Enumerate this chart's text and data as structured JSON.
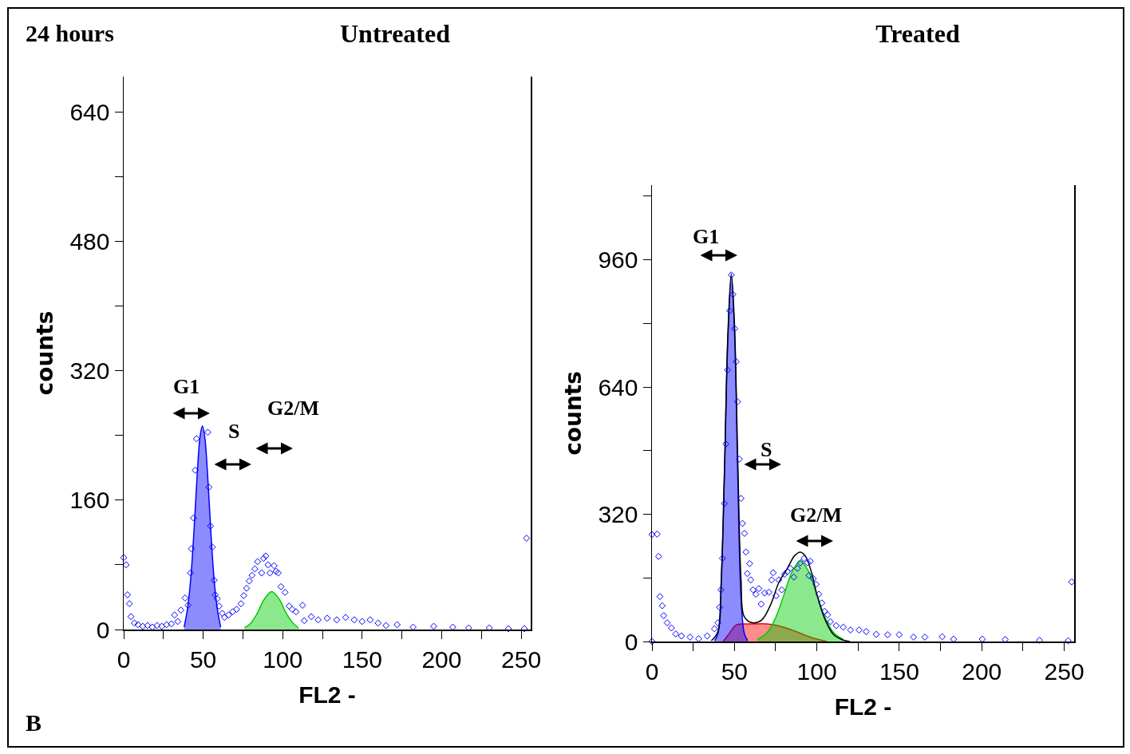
{
  "chart_data": [
    {
      "type": "scatter",
      "title": "Untreated",
      "xlabel": "FL2 -",
      "ylabel": "counts",
      "xlim": [
        0,
        256
      ],
      "ylim": [
        0,
        684
      ],
      "xticks": [
        0,
        {
          "value": 25,
          "label": null
        },
        50,
        {
          "value": 75,
          "label": null
        },
        100,
        {
          "value": 125,
          "label": null
        },
        150,
        {
          "value": 175,
          "label": null
        },
        200,
        {
          "value": 225,
          "label": null
        },
        250
      ],
      "yticks": [
        0,
        {
          "value": 80,
          "label": null
        },
        160,
        {
          "value": 240,
          "label": null
        },
        320,
        {
          "value": 400,
          "label": null
        },
        480,
        {
          "value": 560,
          "label": null
        },
        640
      ],
      "series": [
        {
          "type": "area",
          "color": "#0000ff",
          "x": [
            38,
            40,
            42,
            44,
            46,
            48,
            49.5,
            51,
            53,
            55,
            57,
            59,
            61
          ],
          "values": [
            3,
            24,
            59,
            115,
            184,
            238,
            252,
            238,
            184,
            115,
            59,
            24,
            3
          ]
        },
        {
          "type": "area",
          "color": "#00cc00",
          "x": [
            76,
            80,
            84,
            88,
            93,
            98,
            102,
            106,
            110
          ],
          "values": [
            2,
            8,
            20,
            36,
            47,
            37,
            21,
            9,
            2
          ]
        },
        {
          "marker": "diamond",
          "color": "#0000ff",
          "x": [
            0,
            1.5,
            2.4,
            3.6,
            4.6,
            6.7,
            9,
            12,
            15,
            18,
            21,
            24,
            27,
            30,
            32,
            34,
            36,
            38.6,
            40.5,
            42,
            42.6,
            43.9,
            45,
            45.8,
            52.9,
            53.6,
            54.6,
            55.8,
            56.9,
            57.6,
            58.8,
            60,
            62,
            63.4,
            66,
            68.6,
            71,
            73.8,
            75.5,
            77.3,
            79,
            80.7,
            82.5,
            84.2,
            86.8,
            88,
            89.4,
            90.8,
            92,
            94.6,
            95.8,
            97.2,
            98.9,
            101.5,
            104.1,
            106,
            108.4,
            112.5,
            113.6,
            118,
            122.3,
            128,
            134,
            139.6,
            145,
            150,
            155,
            160,
            165,
            172,
            182,
            195,
            207,
            217,
            230,
            242,
            252,
            253.4
          ],
          "values": [
            89,
            80,
            43,
            32,
            16,
            8,
            6,
            4,
            5,
            3,
            5,
            4,
            6,
            7,
            18,
            10,
            24,
            39,
            30,
            70,
            100,
            138,
            197,
            236,
            244,
            176,
            128,
            102,
            61,
            43,
            38,
            29,
            20,
            15,
            18,
            22,
            25,
            32,
            42,
            51,
            60,
            67,
            75,
            84,
            70,
            88,
            91,
            80,
            70,
            79,
            72,
            70,
            53,
            46,
            29,
            25,
            22,
            30,
            11,
            16,
            12,
            14,
            12,
            15,
            12,
            10,
            12,
            8,
            5,
            6,
            3,
            4,
            3,
            2,
            2,
            1,
            1,
            113
          ]
        }
      ],
      "annotations": [
        "24 hours",
        "B",
        "G1",
        "S",
        "G2/M"
      ]
    },
    {
      "type": "scatter",
      "title": "Treated",
      "xlabel": "FL2 -",
      "ylabel": "counts",
      "xlim": [
        0,
        256
      ],
      "ylim": [
        0,
        1148
      ],
      "xticks": [
        0,
        {
          "value": 25,
          "label": null
        },
        50,
        {
          "value": 75,
          "label": null
        },
        100,
        {
          "value": 125,
          "label": null
        },
        150,
        {
          "value": 175,
          "label": null
        },
        200,
        {
          "value": 225,
          "label": null
        },
        250
      ],
      "yticks": [
        0,
        {
          "value": 160,
          "label": null
        },
        320,
        {
          "value": 480,
          "label": null
        },
        640,
        {
          "value": 800,
          "label": null
        },
        960,
        {
          "value": 1120,
          "label": null
        }
      ],
      "series": [
        {
          "type": "area",
          "color": "#ff0000",
          "x": [
            43,
            46,
            50,
            52,
            60,
            70,
            76,
            82,
            88,
            94,
            100,
            106
          ],
          "values": [
            0,
            15,
            38,
            43,
            44,
            44,
            40,
            33,
            24,
            14,
            6,
            0
          ]
        },
        {
          "type": "area",
          "color": "#00cc00",
          "x": [
            64,
            70,
            75,
            80,
            85,
            90,
            95,
            100,
            105,
            110,
            116
          ],
          "values": [
            5,
            23,
            60,
            117,
            176,
            202,
            176,
            117,
            60,
            23,
            5
          ]
        },
        {
          "type": "area",
          "color": "#0000ff",
          "x": [
            38,
            40,
            42,
            44,
            46,
            48.1,
            50,
            52,
            54,
            56,
            58
          ],
          "values": [
            2,
            20,
            150,
            430,
            760,
            918,
            785,
            420,
            110,
            20,
            2
          ]
        },
        {
          "type": "line",
          "color": "#000000",
          "x": [
            36,
            40,
            42,
            44,
            46,
            48.1,
            50,
            52,
            54,
            56,
            61,
            66.5,
            71.7,
            76.9,
            82.1,
            86.5,
            90,
            93,
            97,
            99.5,
            104.7,
            110,
            115,
            120
          ],
          "values": [
            2,
            25,
            155,
            440,
            770,
            925,
            800,
            460,
            155,
            62,
            47,
            54,
            90,
            148,
            184,
            216,
            225,
            215,
            170,
            126,
            58,
            18,
            5,
            0
          ]
        },
        {
          "marker": "diamond",
          "color": "#0000ff",
          "x": [
            0,
            0,
            3.1,
            4,
            4.8,
            6.2,
            7.1,
            9.2,
            11.8,
            14.4,
            17.9,
            23.1,
            28.3,
            33.5,
            37.9,
            40,
            41,
            41.8,
            42.7,
            43.9,
            44.8,
            45.8,
            47.1,
            48.1,
            49.1,
            50.2,
            51.1,
            51.9,
            53,
            54,
            54.9,
            56.1,
            57,
            57.8,
            59.2,
            59.9,
            61.3,
            63,
            64.8,
            66.2,
            68.3,
            70.9,
            72.6,
            73.5,
            75.2,
            76.9,
            78.7,
            80.4,
            82.1,
            83.9,
            86,
            88.2,
            90,
            92.2,
            94.3,
            96,
            95.2,
            97.8,
            99.5,
            101.2,
            103,
            104.7,
            106.5,
            108.2,
            111.7,
            116,
            120.4,
            125.6,
            129.9,
            136,
            142.9,
            149.9,
            158.6,
            165.5,
            176,
            182.9,
            200.3,
            214.2,
            235,
            252.4,
            254.5
          ],
          "values": [
            0,
            269,
            270,
            214,
            113,
            90,
            65,
            47,
            34,
            19,
            14,
            11,
            7,
            14,
            32,
            47,
            86,
            130,
            209,
            347,
            497,
            683,
            832,
            922,
            873,
            787,
            704,
            603,
            459,
            360,
            297,
            272,
            225,
            171,
            196,
            155,
            130,
            119,
            133,
            94,
            122,
            124,
            155,
            173,
            115,
            155,
            130,
            169,
            176,
            184,
            162,
            184,
            198,
            209,
            198,
            202,
            166,
            158,
            144,
            119,
            97,
            76,
            67,
            50,
            40,
            36,
            29,
            29,
            25,
            18,
            17,
            17,
            11,
            11,
            12,
            6,
            6,
            5,
            3,
            2,
            150
          ]
        }
      ],
      "annotations": [
        "G1",
        "S",
        "G2/M"
      ]
    }
  ]
}
